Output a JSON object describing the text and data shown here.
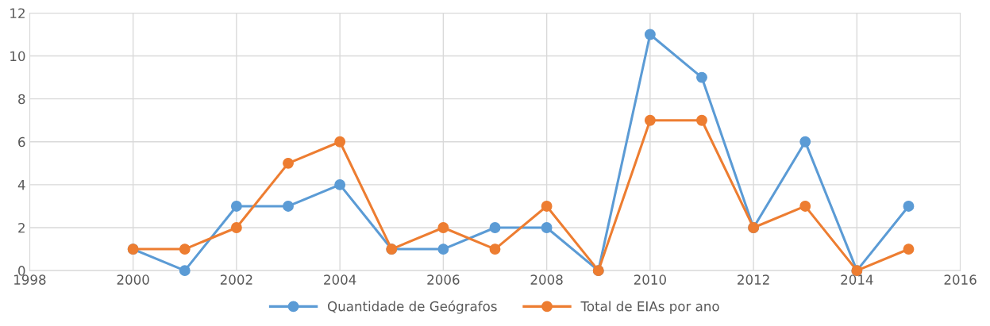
{
  "chart_data": {
    "type": "line",
    "x": [
      2000,
      2001,
      2002,
      2003,
      2004,
      2005,
      2006,
      2007,
      2008,
      2009,
      2010,
      2011,
      2012,
      2013,
      2014,
      2015
    ],
    "series": [
      {
        "name": "Quantidade de Geógrafos",
        "color": "#5b9bd5",
        "values": [
          1,
          0,
          3,
          3,
          4,
          1,
          1,
          2,
          2,
          0,
          11,
          9,
          2,
          6,
          0,
          3
        ]
      },
      {
        "name": "Total de EIAs por ano",
        "color": "#ed7d31",
        "values": [
          1,
          1,
          2,
          5,
          6,
          1,
          2,
          1,
          3,
          0,
          7,
          7,
          2,
          3,
          0,
          1
        ]
      }
    ],
    "xlim": [
      1998,
      2016
    ],
    "xticks": [
      1998,
      2000,
      2002,
      2004,
      2006,
      2008,
      2010,
      2012,
      2014,
      2016
    ],
    "ylim": [
      0,
      12
    ],
    "yticks": [
      0,
      2,
      4,
      6,
      8,
      10,
      12
    ],
    "grid": true,
    "legend": "bottom",
    "marker": "circle",
    "line_style": "solid"
  }
}
